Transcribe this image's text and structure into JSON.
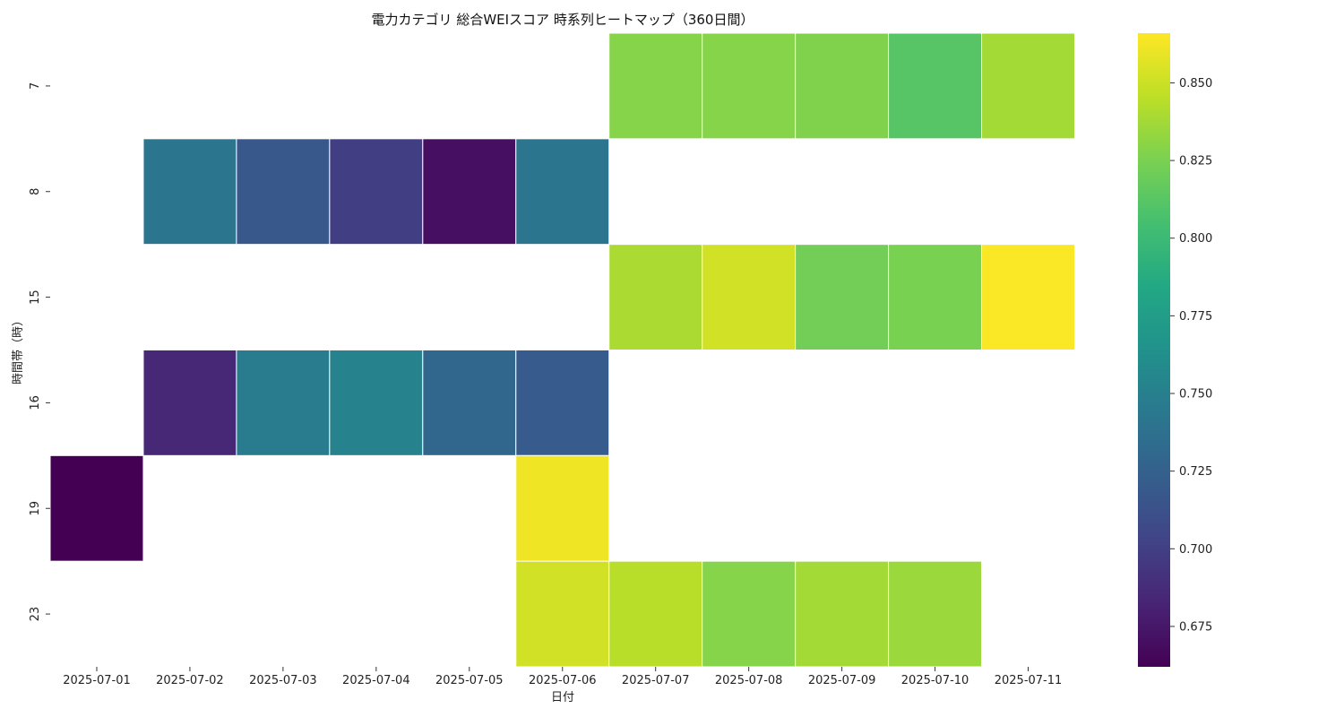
{
  "chart_data": {
    "type": "heatmap",
    "title": "電力カテゴリ 総合WEIスコア 時系列ヒートマップ（360日間）",
    "xlabel": "日付",
    "ylabel": "時間帯（時）",
    "x": [
      "2025-07-01",
      "2025-07-02",
      "2025-07-03",
      "2025-07-04",
      "2025-07-05",
      "2025-07-06",
      "2025-07-07",
      "2025-07-08",
      "2025-07-09",
      "2025-07-10",
      "2025-07-11"
    ],
    "y": [
      "7",
      "8",
      "15",
      "16",
      "19",
      "23"
    ],
    "values": [
      [
        null,
        null,
        null,
        null,
        null,
        null,
        0.829,
        0.829,
        0.827,
        0.812,
        0.838
      ],
      [
        null,
        0.741,
        0.718,
        0.699,
        0.67,
        0.742,
        null,
        null,
        null,
        null,
        null
      ],
      [
        null,
        null,
        null,
        null,
        null,
        null,
        0.84,
        0.852,
        0.822,
        0.825,
        0.865
      ],
      [
        null,
        0.685,
        0.747,
        0.752,
        0.73,
        0.72,
        null,
        null,
        null,
        null,
        null
      ],
      [
        0.662,
        null,
        null,
        null,
        null,
        0.862,
        null,
        null,
        null,
        null,
        null
      ],
      [
        null,
        null,
        null,
        null,
        null,
        0.852,
        0.844,
        0.829,
        0.838,
        0.835,
        null
      ]
    ],
    "colorbar": {
      "colormap": "viridis",
      "vmin": 0.662,
      "vmax": 0.866,
      "ticks": [
        "0.675",
        "0.700",
        "0.725",
        "0.750",
        "0.775",
        "0.800",
        "0.825",
        "0.850"
      ]
    },
    "grid": false,
    "legend": "colorbar-right"
  }
}
